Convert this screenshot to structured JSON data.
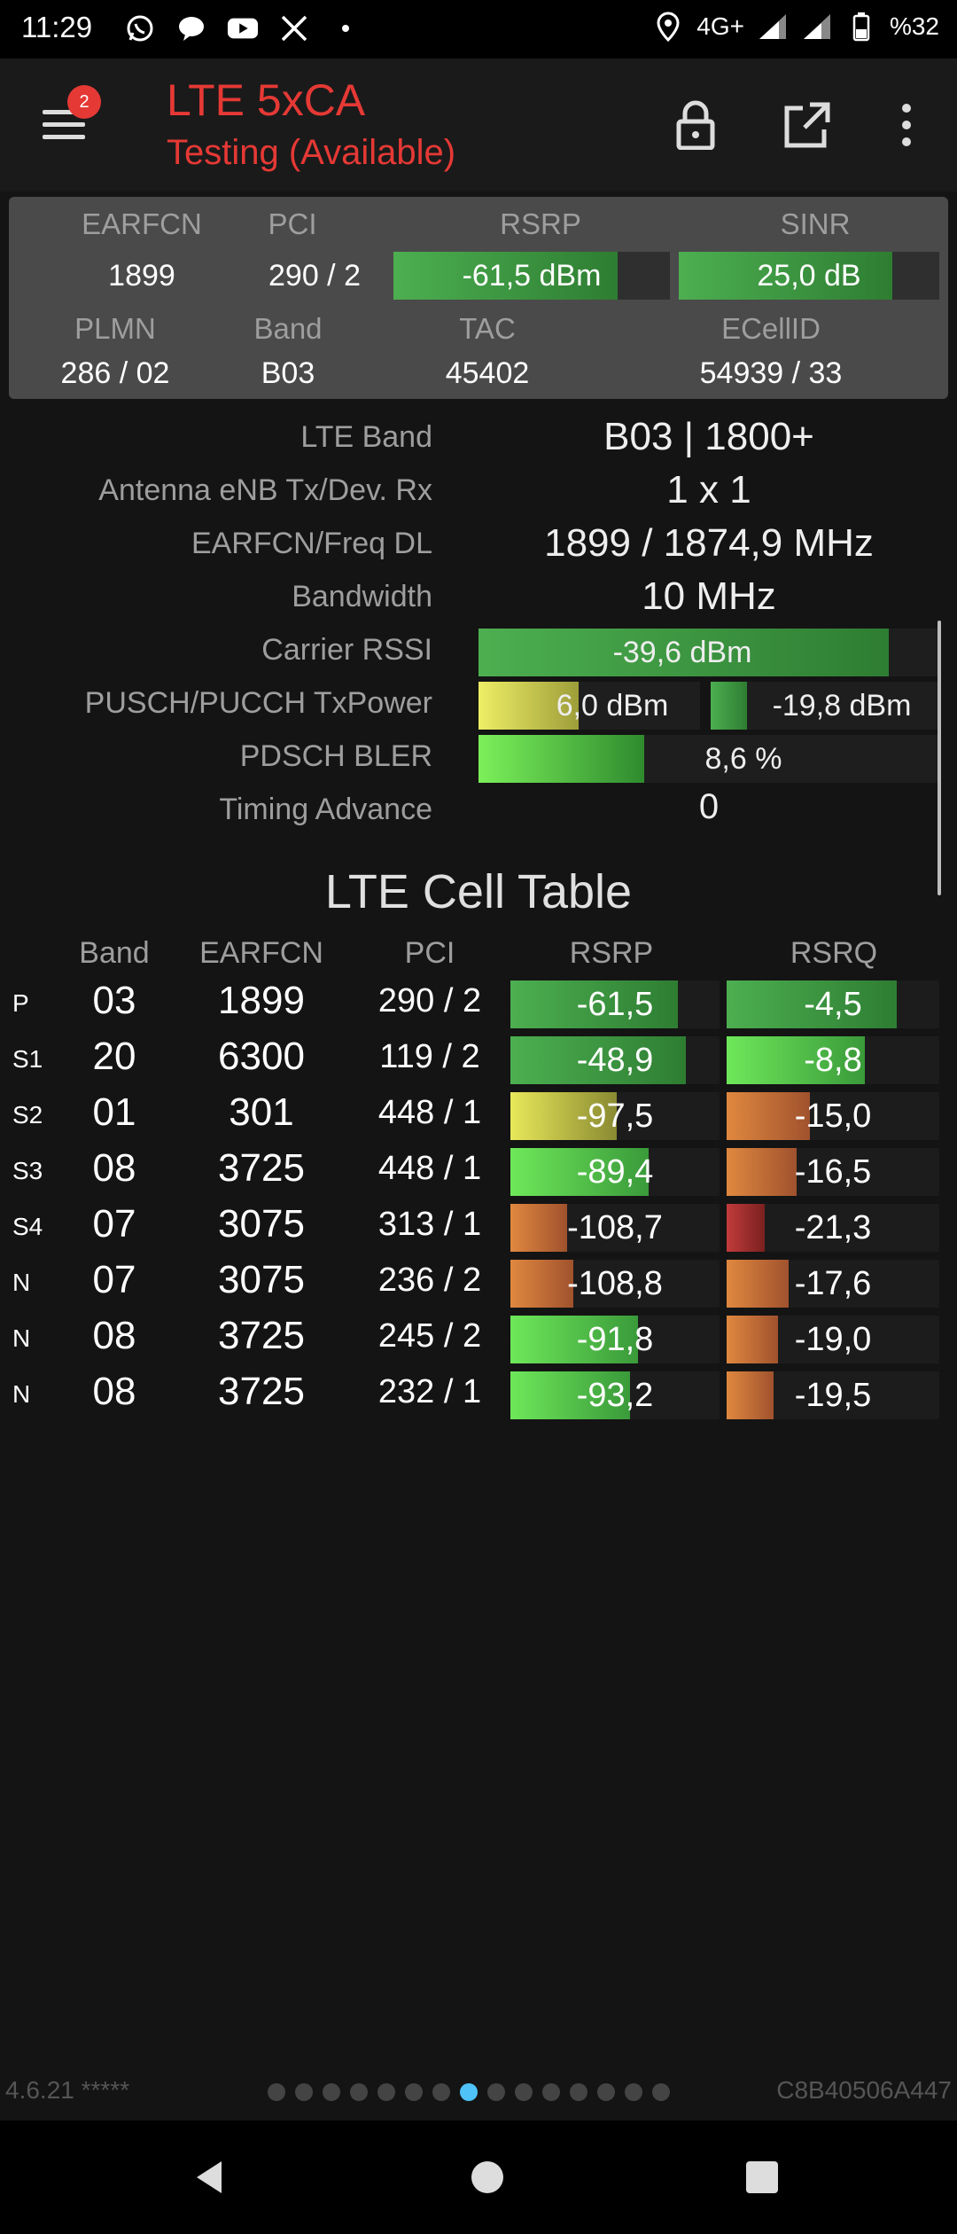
{
  "status_bar": {
    "time": "11:29",
    "network": "4G+",
    "battery": "%32",
    "notification_icons": [
      "whatsapp-icon",
      "chat-icon",
      "youtube-icon",
      "x-icon",
      "dot-icon"
    ],
    "system_icons": [
      "location-icon",
      "signal-icon",
      "signal-icon",
      "battery-icon"
    ]
  },
  "app_bar": {
    "title": "LTE 5xCA",
    "subtitle": "Testing (Available)",
    "badge_count": "2",
    "accent_color": "#e53935"
  },
  "summary": {
    "labels": [
      "EARFCN",
      "PCI",
      "RSRP",
      "SINR",
      "PLMN",
      "Band",
      "TAC",
      "ECellID"
    ],
    "earfcn": "1899",
    "pci": "290 / 2",
    "rsrp": {
      "text": "-61,5 dBm",
      "fill_fraction": 0.81
    },
    "sinr": {
      "text": "25,0 dB",
      "fill_fraction": 0.82
    },
    "plmn": "286 / 02",
    "band": "B03",
    "tac": "45402",
    "ecellid": "54939 / 33"
  },
  "details": {
    "lte_band_label": "LTE Band",
    "lte_band_value": "B03 | 1800+",
    "antenna_label": "Antenna eNB Tx/Dev. Rx",
    "antenna_value": "1 x 1",
    "earfcn_label": "EARFCN/Freq DL",
    "earfcn_value": "1899 / 1874,9 MHz",
    "bandwidth_label": "Bandwidth",
    "bandwidth_value": "10 MHz",
    "rssi_label": "Carrier RSSI",
    "rssi_value": {
      "text": "-39,6 dBm",
      "fill_fraction": 0.89
    },
    "txpower_label": "PUSCH/PUCCH TxPower",
    "pusch_value": {
      "text": "6,0 dBm",
      "fill_fraction": 0.45
    },
    "pucch_value": {
      "text": "-19,8 dBm",
      "fill_fraction": 0.16
    },
    "bler_label": "PDSCH BLER",
    "bler_value": {
      "text": "8,6 %",
      "fill_fraction": 0.36
    },
    "ta_label": "Timing Advance",
    "ta_value": "0"
  },
  "cell_table": {
    "title": "LTE Cell Table",
    "headers": [
      "Band",
      "EARFCN",
      "PCI",
      "RSRP",
      "RSRQ"
    ],
    "rows": [
      {
        "tag": "P",
        "band": "03",
        "earfcn": "1899",
        "pci": "290 / 2",
        "rsrp": "-61,5",
        "rsrp_fill": 0.8,
        "rsrp_color": "green",
        "rsrq": "-4,5",
        "rsrq_fill": 0.8,
        "rsrq_color": "green"
      },
      {
        "tag": "S1",
        "band": "20",
        "earfcn": "6300",
        "pci": "119 / 2",
        "rsrp": "-48,9",
        "rsrp_fill": 0.84,
        "rsrp_color": "green",
        "rsrq": "-8,8",
        "rsrq_fill": 0.65,
        "rsrq_color": "lime"
      },
      {
        "tag": "S2",
        "band": "01",
        "earfcn": "301",
        "pci": "448 / 1",
        "rsrp": "-97,5",
        "rsrp_fill": 0.51,
        "rsrp_color": "yellow",
        "rsrq": "-15,0",
        "rsrq_fill": 0.39,
        "rsrq_color": "orange"
      },
      {
        "tag": "S3",
        "band": "08",
        "earfcn": "3725",
        "pci": "448 / 1",
        "rsrp": "-89,4",
        "rsrp_fill": 0.66,
        "rsrp_color": "lime",
        "rsrq": "-16,5",
        "rsrq_fill": 0.33,
        "rsrq_color": "orange"
      },
      {
        "tag": "S4",
        "band": "07",
        "earfcn": "3075",
        "pci": "313 / 1",
        "rsrp": "-108,7",
        "rsrp_fill": 0.27,
        "rsrp_color": "orange",
        "rsrq": "-21,3",
        "rsrq_fill": 0.18,
        "rsrq_color": "red"
      },
      {
        "tag": "N",
        "band": "07",
        "earfcn": "3075",
        "pci": "236 / 2",
        "rsrp": "-108,8",
        "rsrp_fill": 0.3,
        "rsrp_color": "orange",
        "rsrq": "-17,6",
        "rsrq_fill": 0.29,
        "rsrq_color": "orange"
      },
      {
        "tag": "N",
        "band": "08",
        "earfcn": "3725",
        "pci": "245 / 2",
        "rsrp": "-91,8",
        "rsrp_fill": 0.61,
        "rsrp_color": "lime",
        "rsrq": "-19,0",
        "rsrq_fill": 0.24,
        "rsrq_color": "orange"
      },
      {
        "tag": "N",
        "band": "08",
        "earfcn": "3725",
        "pci": "232 / 1",
        "rsrp": "-93,2",
        "rsrp_fill": 0.57,
        "rsrp_color": "lime",
        "rsrq": "-19,5",
        "rsrq_fill": 0.22,
        "rsrq_color": "orange"
      }
    ]
  },
  "footer": {
    "version": "4.6.21 *****",
    "device_id": "C8B40506A447",
    "page_count": 15,
    "active_page": 7
  },
  "nav": [
    "back-icon",
    "home-icon",
    "recents-icon"
  ]
}
